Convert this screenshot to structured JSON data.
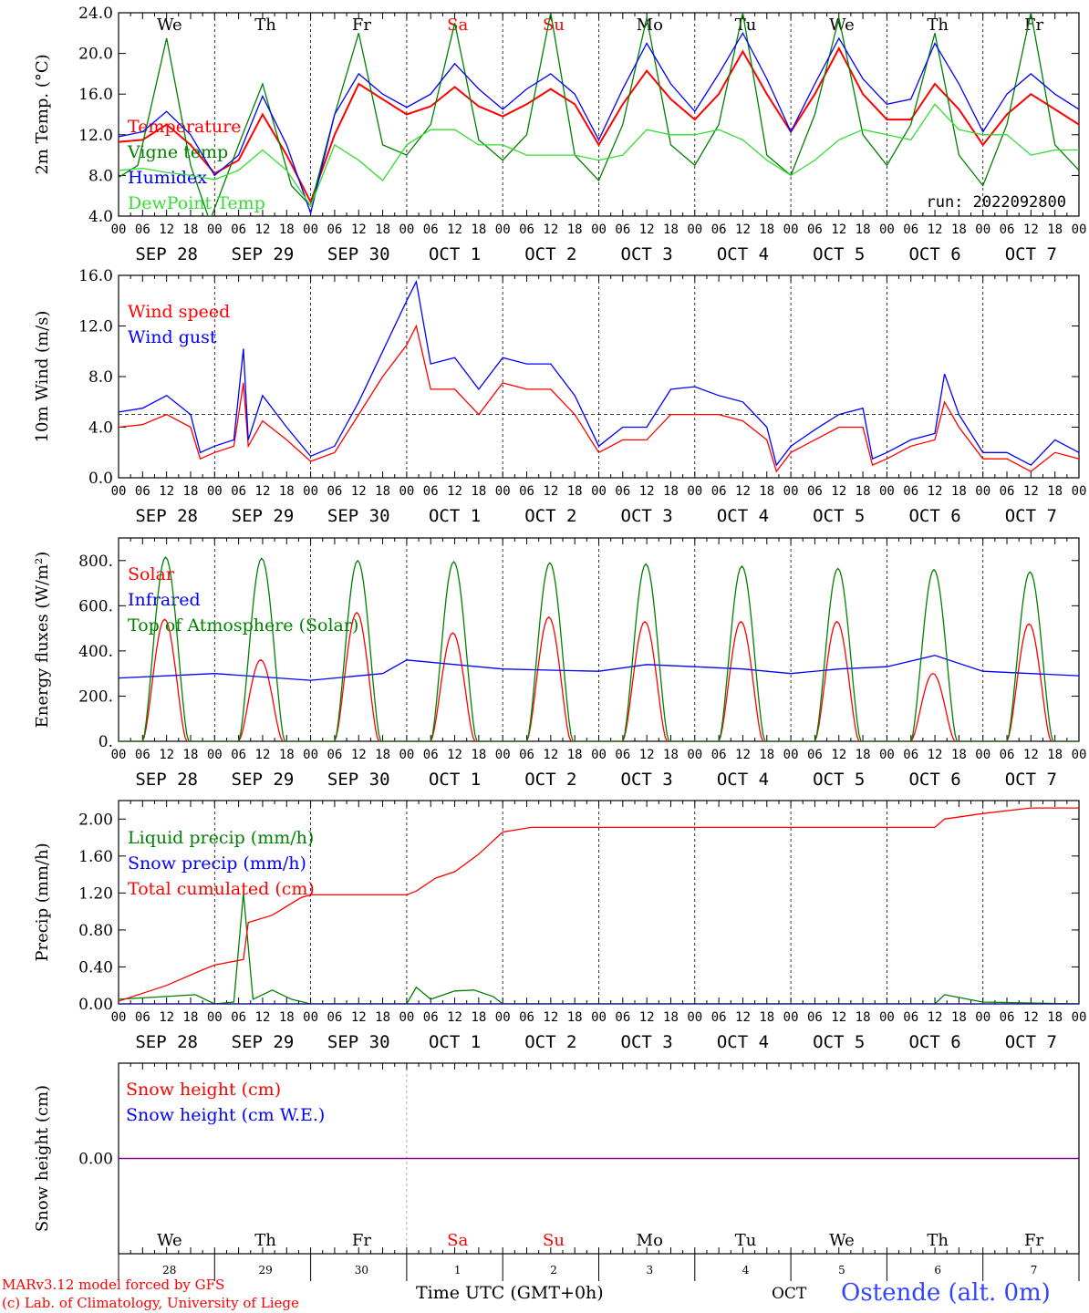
{
  "footer": {
    "model": "MARv3.12 model forced by GFS",
    "copyright": "(c) Lab. of Climatology, University of Liege",
    "time_label": "Time UTC (GMT+0h)",
    "month": "OCT",
    "station": "Ostende (alt. 0m)"
  },
  "days": [
    {
      "weekday": "We",
      "date_label": "SEP 28",
      "day_num": "28",
      "weekend": false
    },
    {
      "weekday": "Th",
      "date_label": "SEP 29",
      "day_num": "29",
      "weekend": false
    },
    {
      "weekday": "Fr",
      "date_label": "SEP 30",
      "day_num": "30",
      "weekend": false
    },
    {
      "weekday": "Sa",
      "date_label": "OCT  1",
      "day_num": "1",
      "weekend": true
    },
    {
      "weekday": "Su",
      "date_label": "OCT  2",
      "day_num": "2",
      "weekend": true
    },
    {
      "weekday": "Mo",
      "date_label": "OCT  3",
      "day_num": "3",
      "weekend": false
    },
    {
      "weekday": "Tu",
      "date_label": "OCT  4",
      "day_num": "4",
      "weekend": false
    },
    {
      "weekday": "We",
      "date_label": "OCT  5",
      "day_num": "5",
      "weekend": false
    },
    {
      "weekday": "Th",
      "date_label": "OCT  6",
      "day_num": "6",
      "weekend": false
    },
    {
      "weekday": "Fr",
      "date_label": "OCT  7",
      "day_num": "7",
      "weekend": false
    }
  ],
  "hour_ticks": [
    "00",
    "06",
    "12",
    "18"
  ],
  "colors": {
    "red": "#ff0000",
    "green": "#008000",
    "blue": "#0000ff",
    "lightgreen": "#33dd33",
    "purple": "#800080",
    "weekend": "#ff0000"
  },
  "chart_data": [
    {
      "id": "temp",
      "type": "line",
      "ylabel": "2m Temp. (°C)",
      "ylim": [
        4,
        24
      ],
      "yticks": [
        "4.0",
        "8.0",
        "12.0",
        "16.0",
        "20.0",
        "24.0"
      ],
      "annotation": "run: 2022092800",
      "legend": "top-left",
      "show_weekdays": true,
      "series": [
        {
          "name": "Temperature",
          "color": "red",
          "x_days": [
            0,
            0.25,
            0.5,
            0.75,
            1,
            1.25,
            1.5,
            1.75,
            2,
            2.25,
            2.5,
            2.75,
            3,
            3.25,
            3.5,
            3.75,
            4,
            4.25,
            4.5,
            4.75,
            5,
            5.25,
            5.5,
            5.75,
            6,
            6.25,
            6.5,
            6.75,
            7,
            7.25,
            7.5,
            7.75,
            8,
            8.25,
            8.5,
            8.75,
            9,
            9.25,
            9.5,
            9.75,
            10
          ],
          "values": [
            11.3,
            11.5,
            13,
            11,
            8.2,
            9.5,
            14,
            10,
            5.4,
            12,
            17,
            15.5,
            14,
            14.8,
            16.7,
            14.8,
            13.8,
            15,
            16.5,
            15,
            11,
            15,
            18.3,
            15.5,
            13.5,
            16,
            20.2,
            16,
            12.3,
            16,
            20.5,
            16,
            13.5,
            13.5,
            17,
            14.5,
            11,
            14,
            16,
            14.5,
            13
          ]
        },
        {
          "name": "Vigne temp",
          "color": "green",
          "x_days": [
            0,
            0.2,
            0.5,
            0.75,
            0.95,
            1.25,
            1.5,
            1.8,
            2,
            2.25,
            2.5,
            2.75,
            3,
            3.25,
            3.5,
            3.75,
            4,
            4.25,
            4.5,
            4.75,
            5,
            5.25,
            5.5,
            5.75,
            6,
            6.25,
            6.5,
            6.75,
            7,
            7.25,
            7.5,
            7.75,
            8,
            8.25,
            8.5,
            8.75,
            9,
            9.25,
            9.5,
            9.75,
            10
          ],
          "values": [
            7.8,
            9,
            21.5,
            9,
            3.5,
            11,
            17,
            7,
            5,
            14,
            22,
            11,
            10,
            13,
            23,
            11.5,
            9.5,
            12,
            24,
            10,
            7.5,
            13,
            23.5,
            11,
            9,
            13,
            24,
            10,
            8,
            14,
            23.5,
            12,
            9,
            13,
            22,
            10,
            7,
            13,
            24,
            11,
            8.5
          ]
        },
        {
          "name": "Humidex",
          "color": "blue",
          "x_days": [
            0,
            0.25,
            0.5,
            0.75,
            1,
            1.25,
            1.5,
            1.75,
            2,
            2.25,
            2.5,
            2.75,
            3,
            3.25,
            3.5,
            3.75,
            4,
            4.25,
            4.5,
            4.75,
            5,
            5.25,
            5.5,
            5.75,
            6,
            6.25,
            6.5,
            6.75,
            7,
            7.25,
            7.5,
            7.75,
            8,
            8.25,
            8.5,
            8.75,
            9,
            9.25,
            9.5,
            9.75,
            10
          ],
          "values": [
            11.8,
            12.3,
            14.3,
            12,
            8,
            10,
            15.8,
            11,
            4.3,
            14,
            18,
            16,
            14.7,
            16,
            19,
            16.5,
            14.5,
            16.5,
            18,
            16,
            11.5,
            16.5,
            21,
            17,
            14.3,
            18,
            22,
            17.5,
            12.3,
            17,
            21.5,
            17.5,
            15,
            15.5,
            21,
            17,
            12.3,
            16,
            18,
            16,
            14.5
          ]
        },
        {
          "name": "DewPoint Temp",
          "color": "lightgreen",
          "x_days": [
            0,
            0.25,
            0.5,
            0.75,
            1,
            1.25,
            1.5,
            1.75,
            2,
            2.25,
            2.5,
            2.75,
            3,
            3.25,
            3.5,
            3.75,
            4,
            4.25,
            4.5,
            4.75,
            5,
            5.25,
            5.5,
            5.75,
            6,
            6.25,
            6.5,
            6.75,
            7,
            7.25,
            7.5,
            7.75,
            8,
            8.25,
            8.5,
            8.75,
            9,
            9.25,
            9.5,
            9.75,
            10
          ],
          "values": [
            8.5,
            8.7,
            8.3,
            8.0,
            7.6,
            8.5,
            10.5,
            8.5,
            5,
            11,
            9.5,
            7.5,
            11,
            12.5,
            12.5,
            11,
            11,
            10,
            10,
            10,
            9.5,
            10,
            12.5,
            12,
            12,
            12.5,
            11.5,
            9.5,
            8,
            9.5,
            11.5,
            12.5,
            12,
            11.5,
            15,
            12.5,
            12,
            12,
            10,
            10.5,
            10.5
          ]
        }
      ]
    },
    {
      "id": "wind",
      "type": "line",
      "ylabel": "10m Wind (m/s)",
      "ylim": [
        0,
        16
      ],
      "yticks": [
        "0.0",
        "4.0",
        "8.0",
        "12.0",
        "16.0"
      ],
      "reference_line": 5,
      "legend": "top-left",
      "series": [
        {
          "name": "Wind speed",
          "color": "red",
          "x_days": [
            0,
            0.25,
            0.5,
            0.75,
            0.85,
            1,
            1.2,
            1.3,
            1.35,
            1.5,
            1.75,
            2,
            2.25,
            2.5,
            2.75,
            3,
            3.1,
            3.25,
            3.5,
            3.75,
            4,
            4.25,
            4.5,
            4.75,
            5,
            5.25,
            5.5,
            5.75,
            6,
            6.25,
            6.5,
            6.75,
            6.85,
            7,
            7.25,
            7.5,
            7.75,
            7.85,
            8,
            8.25,
            8.5,
            8.6,
            8.75,
            9,
            9.25,
            9.5,
            9.75,
            10
          ],
          "values": [
            4,
            4.2,
            5,
            4,
            1.5,
            2,
            2.5,
            7.5,
            2.5,
            4.5,
            3,
            1.3,
            2,
            5,
            8,
            10.5,
            12,
            7,
            7,
            5,
            7.5,
            7,
            7,
            5,
            2,
            3,
            3,
            5,
            5,
            5,
            4.5,
            3,
            0.5,
            2,
            3,
            4,
            4,
            1,
            1.5,
            2.5,
            3,
            6,
            4,
            1.5,
            1.5,
            0.5,
            2,
            1.5
          ]
        },
        {
          "name": "Wind gust",
          "color": "blue",
          "x_days": [
            0,
            0.25,
            0.5,
            0.75,
            0.85,
            1,
            1.2,
            1.3,
            1.35,
            1.5,
            1.75,
            2,
            2.25,
            2.5,
            2.75,
            3,
            3.1,
            3.25,
            3.5,
            3.75,
            4,
            4.25,
            4.5,
            4.75,
            5,
            5.25,
            5.5,
            5.75,
            6,
            6.25,
            6.5,
            6.75,
            6.85,
            7,
            7.25,
            7.5,
            7.75,
            7.85,
            8,
            8.25,
            8.5,
            8.6,
            8.75,
            9,
            9.25,
            9.5,
            9.75,
            10
          ],
          "values": [
            5.2,
            5.5,
            6.5,
            5,
            2,
            2.5,
            3,
            10.2,
            3,
            6.5,
            4,
            1.7,
            2.5,
            6,
            10,
            14,
            15.5,
            9,
            9.5,
            7,
            9.5,
            9,
            9,
            6.5,
            2.5,
            4,
            4,
            7,
            7.2,
            6.5,
            6,
            4,
            1,
            2.5,
            3.8,
            5,
            5.5,
            1.5,
            2,
            3,
            3.5,
            8.2,
            5,
            2,
            2,
            1,
            3,
            2
          ]
        }
      ]
    },
    {
      "id": "energy",
      "type": "line",
      "ylabel": "Energy fluxes (W/m²)",
      "ylim": [
        0,
        900
      ],
      "yticks": [
        "0.",
        "200.",
        "400.",
        "600.",
        "800."
      ],
      "legend": "top-left",
      "series": [
        {
          "name": "Solar",
          "color": "red",
          "diurnal_peaks": [
            540,
            360,
            570,
            480,
            550,
            530,
            530,
            530,
            300,
            520
          ],
          "daytime": [
            0.25,
            0.71
          ]
        },
        {
          "name": "Infrared",
          "color": "blue",
          "x_days": [
            0,
            1,
            2,
            2.75,
            3,
            3.5,
            4,
            4.5,
            5,
            5.5,
            6,
            6.5,
            7,
            7.5,
            8,
            8.5,
            9,
            9.5,
            10
          ],
          "values": [
            280,
            300,
            270,
            300,
            360,
            340,
            320,
            315,
            310,
            340,
            330,
            320,
            300,
            320,
            330,
            380,
            310,
            300,
            290
          ]
        },
        {
          "name": "Top of Atmosphere (Solar)",
          "color": "green",
          "diurnal_peaks": [
            815,
            810,
            800,
            795,
            790,
            785,
            775,
            765,
            760,
            750
          ],
          "daytime": [
            0.25,
            0.73
          ]
        }
      ]
    },
    {
      "id": "precip",
      "type": "line",
      "ylabel": "Precip (mm/h)",
      "ylim": [
        0,
        2.2
      ],
      "yticks": [
        "0.00",
        "0.40",
        "0.80",
        "1.20",
        "1.60",
        "2.00"
      ],
      "legend": "top-left",
      "series": [
        {
          "name": "Liquid precip (mm/h)",
          "color": "green",
          "x_days": [
            0,
            0.5,
            0.8,
            1,
            1.2,
            1.3,
            1.4,
            1.5,
            1.6,
            1.8,
            2,
            3,
            3.1,
            3.25,
            3.5,
            3.7,
            3.9,
            4,
            8.5,
            8.6,
            9,
            10
          ],
          "values": [
            0.05,
            0.08,
            0.1,
            0,
            0.02,
            1.2,
            0.05,
            0.1,
            0.15,
            0.05,
            0,
            0,
            0.18,
            0.05,
            0.14,
            0.15,
            0.08,
            0,
            0,
            0.1,
            0.02,
            0
          ]
        },
        {
          "name": "Snow precip (mm/h)",
          "color": "blue",
          "x_days": [
            0,
            10
          ],
          "values": [
            0,
            0
          ]
        },
        {
          "name": "Total cumulated (cm)",
          "color": "red",
          "x_days": [
            0,
            0.5,
            0.9,
            1,
            1.3,
            1.35,
            1.6,
            1.9,
            2,
            3,
            3.1,
            3.3,
            3.5,
            3.75,
            4,
            4.3,
            5,
            6,
            7,
            8,
            8.5,
            8.6,
            9,
            9.5,
            10
          ],
          "values": [
            0.03,
            0.2,
            0.38,
            0.42,
            0.48,
            0.88,
            0.96,
            1.15,
            1.18,
            1.18,
            1.22,
            1.36,
            1.43,
            1.62,
            1.86,
            1.91,
            1.91,
            1.91,
            1.91,
            1.91,
            1.91,
            2.0,
            2.06,
            2.12,
            2.12
          ]
        }
      ]
    },
    {
      "id": "snow",
      "type": "line",
      "ylabel": "Snow height (cm)",
      "ylim": [
        -1,
        1
      ],
      "yticks": [
        "0.00"
      ],
      "legend": "top-left",
      "show_weekdays_bottom": true,
      "series": [
        {
          "name": "Snow height (cm)",
          "color": "red",
          "x_days": [
            0,
            10
          ],
          "values": [
            0,
            0
          ]
        },
        {
          "name": "Snow height (cm W.E.)",
          "color": "blue",
          "x_days": [
            0,
            10
          ],
          "values": [
            0,
            0
          ]
        }
      ]
    }
  ]
}
